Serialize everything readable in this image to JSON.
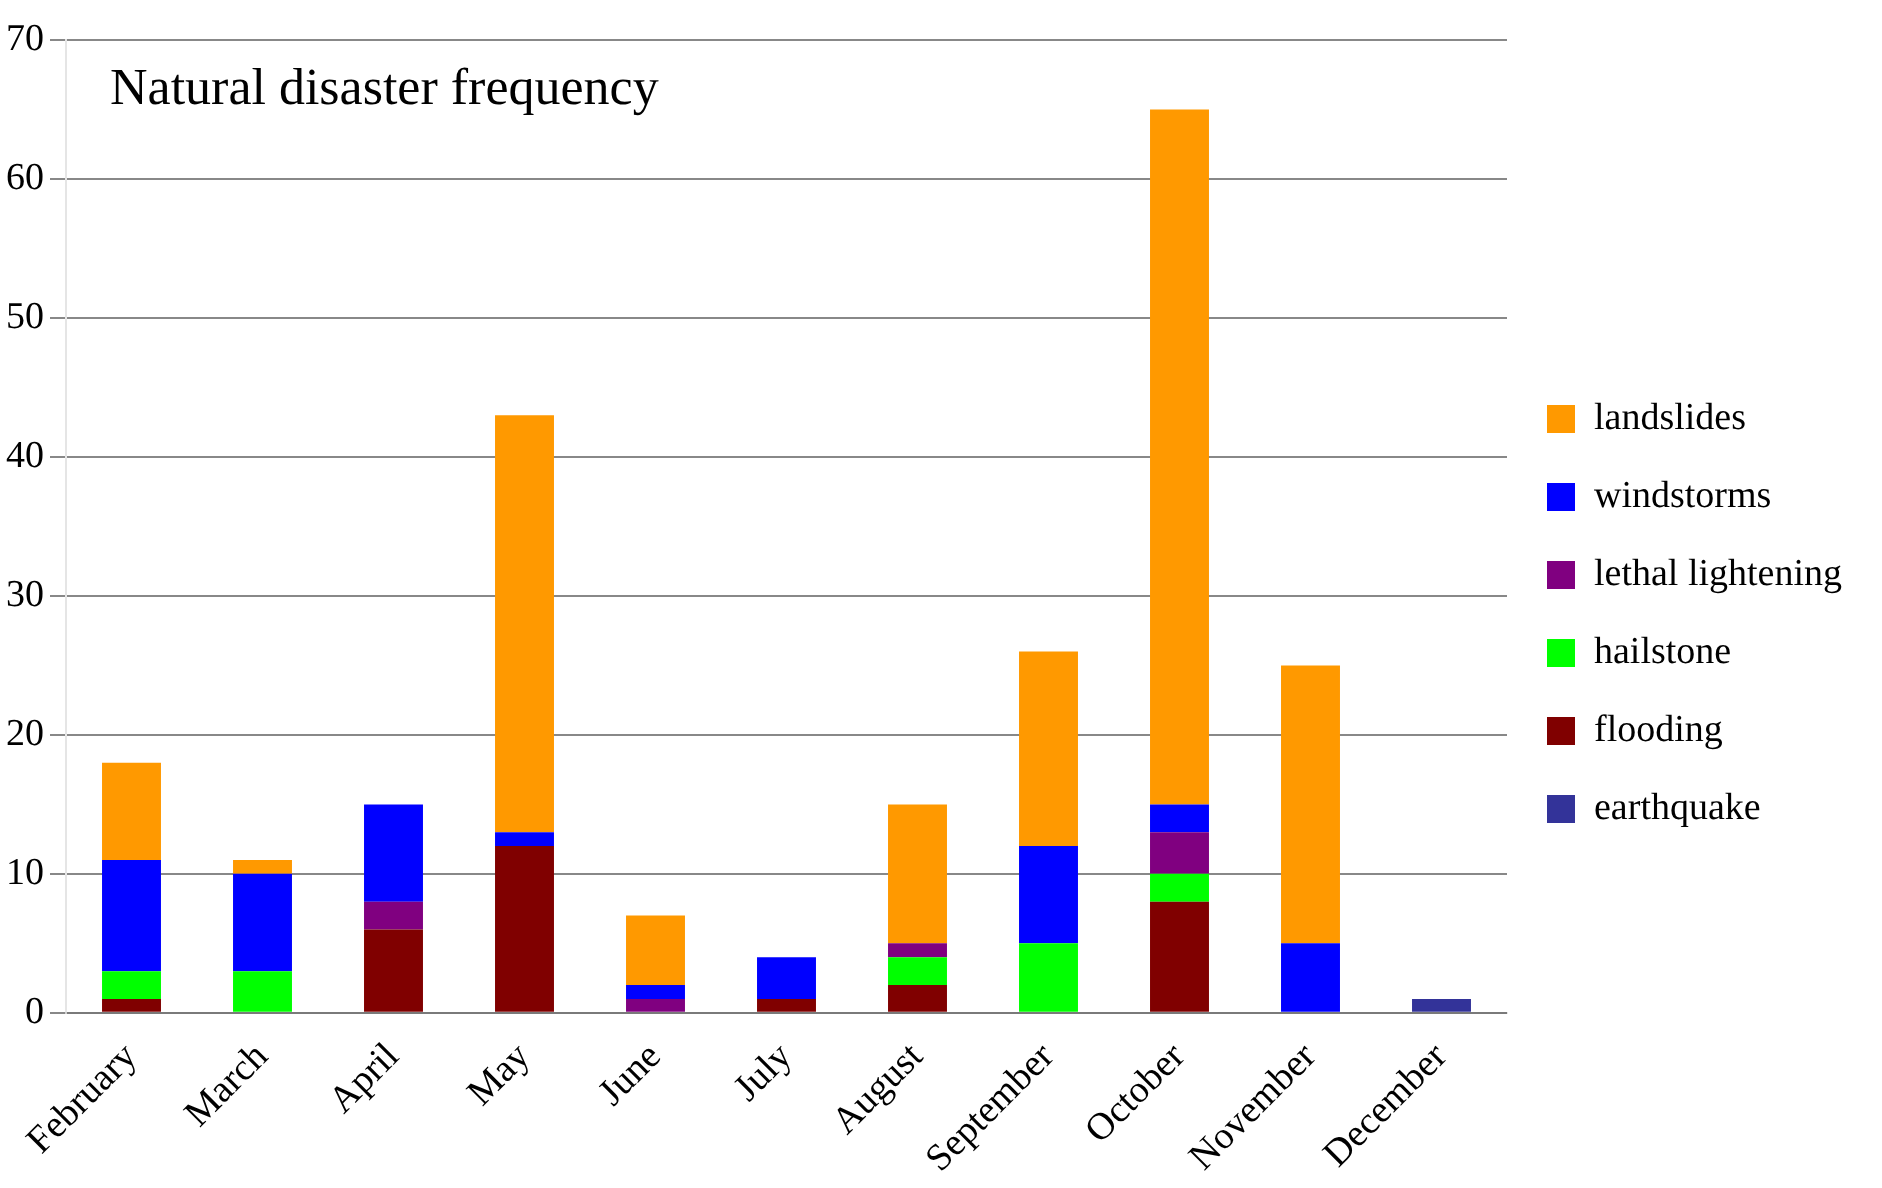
{
  "chart_data": {
    "type": "bar",
    "title": "Natural disaster frequency",
    "stacked": true,
    "categories": [
      "February",
      "March",
      "April",
      "May",
      "June",
      "July",
      "August",
      "September",
      "October",
      "November",
      "December"
    ],
    "series": [
      {
        "name": "earthquake",
        "color": "#333399",
        "values": [
          0,
          0,
          0,
          0,
          0,
          0,
          0,
          0,
          0,
          0,
          1
        ]
      },
      {
        "name": "flooding",
        "color": "#800000",
        "values": [
          1,
          0,
          6,
          12,
          0,
          1,
          2,
          0,
          8,
          0,
          0
        ]
      },
      {
        "name": "hailstone",
        "color": "#00ff00",
        "values": [
          2,
          3,
          0,
          0,
          0,
          0,
          2,
          5,
          2,
          0,
          0
        ]
      },
      {
        "name": "lethal lightening",
        "color": "#800080",
        "values": [
          0,
          0,
          2,
          0,
          1,
          0,
          1,
          0,
          3,
          0,
          0
        ]
      },
      {
        "name": "windstorms",
        "color": "#0000ff",
        "values": [
          8,
          7,
          7,
          1,
          1,
          3,
          0,
          7,
          2,
          5,
          0
        ]
      },
      {
        "name": "landslides",
        "color": "#ff9900",
        "values": [
          7,
          1,
          0,
          30,
          5,
          0,
          10,
          14,
          50,
          20,
          0
        ]
      }
    ],
    "ylim": [
      0,
      70
    ],
    "yticks": [
      0,
      10,
      20,
      30,
      40,
      50,
      60,
      70
    ],
    "grid": "y",
    "legend": "right"
  }
}
